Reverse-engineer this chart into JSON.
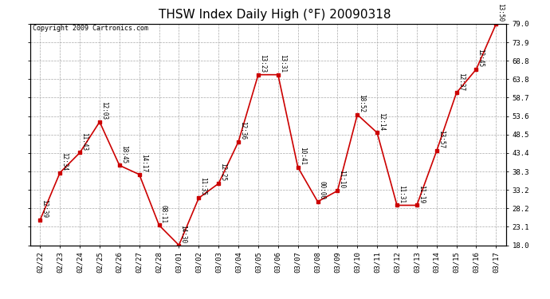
{
  "title": "THSW Index Daily High (°F) 20090318",
  "copyright": "Copyright 2009 Cartronics.com",
  "dates": [
    "02/22",
    "02/23",
    "02/24",
    "02/25",
    "02/26",
    "02/27",
    "02/28",
    "03/01",
    "03/02",
    "03/03",
    "03/04",
    "03/05",
    "03/06",
    "03/07",
    "03/08",
    "03/09",
    "03/10",
    "03/11",
    "03/12",
    "03/13",
    "03/14",
    "03/15",
    "03/16",
    "03/17"
  ],
  "values": [
    25.0,
    38.0,
    43.5,
    52.0,
    40.0,
    37.5,
    23.5,
    18.0,
    31.0,
    35.0,
    46.5,
    65.0,
    65.0,
    39.5,
    30.0,
    33.0,
    54.0,
    49.0,
    29.0,
    29.0,
    44.0,
    60.0,
    66.5,
    79.0
  ],
  "annotations": [
    "12:39",
    "12:34",
    "11:43",
    "12:03",
    "18:45",
    "14:17",
    "08:11",
    "14:30",
    "11:35",
    "12:25",
    "12:36",
    "13:23",
    "13:31",
    "10:41",
    "00:00",
    "11:10",
    "18:52",
    "12:14",
    "11:31",
    "11:19",
    "13:57",
    "12:37",
    "12:45",
    "13:50"
  ],
  "line_color": "#cc0000",
  "marker_color": "#cc0000",
  "bg_color": "#ffffff",
  "grid_color": "#aaaaaa",
  "ylim": [
    18.0,
    79.0
  ],
  "yticks": [
    18.0,
    23.1,
    28.2,
    33.2,
    38.3,
    43.4,
    48.5,
    53.6,
    58.7,
    63.8,
    68.8,
    73.9,
    79.0
  ],
  "title_fontsize": 11,
  "annotation_fontsize": 5.5,
  "copyright_fontsize": 6,
  "tick_fontsize": 6.5
}
